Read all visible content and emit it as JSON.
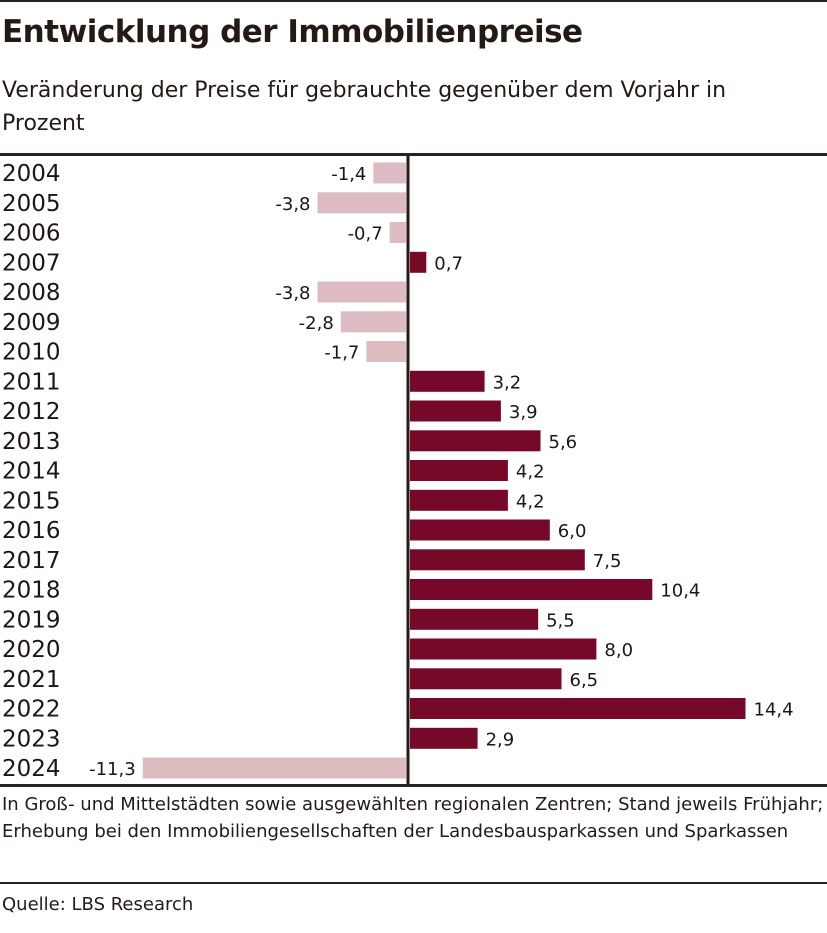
{
  "header": {
    "title": "Entwicklung der Immobilienpreise",
    "subtitle": "Veränderung der Preise für gebrauchte gegenüber dem Vorjahr in Prozent"
  },
  "footer": {
    "note": "In Groß- und Mittelstädten sowie ausgewählten regionalen Zentren; Stand jeweils Frühjahr; Erhebung bei den Immobiliengesellschaften der Landesbausparkassen und Sparkassen",
    "source": "Quelle: LBS Research"
  },
  "chart_data": {
    "type": "bar",
    "orientation": "horizontal",
    "title": "Entwicklung der Immobilienpreise",
    "subtitle": "Veränderung der Preise für gebrauchte gegenüber dem Vorjahr in Prozent",
    "categories": [
      "2004",
      "2005",
      "2006",
      "2007",
      "2008",
      "2009",
      "2010",
      "2011",
      "2012",
      "2013",
      "2014",
      "2015",
      "2016",
      "2017",
      "2018",
      "2019",
      "2020",
      "2021",
      "2022",
      "2023",
      "2024"
    ],
    "values": [
      -1.4,
      -3.8,
      -0.7,
      0.7,
      -3.8,
      -2.8,
      -1.7,
      3.2,
      3.9,
      5.6,
      4.2,
      4.2,
      6.0,
      7.5,
      10.4,
      5.5,
      8.0,
      6.5,
      14.4,
      2.9,
      -11.3
    ],
    "value_labels": [
      "-1,4",
      "-3,8",
      "-0,7",
      "0,7",
      "-3,8",
      "-2,8",
      "-1,7",
      "3,2",
      "3,9",
      "5,6",
      "4,2",
      "4,2",
      "6,0",
      "7,5",
      "10,4",
      "5,5",
      "8,0",
      "6,5",
      "14,4",
      "2,9",
      "-11,3"
    ],
    "colors": {
      "positive": "#76092a",
      "negative": "#dcbcc2",
      "axis": "#231a15"
    },
    "grid": false,
    "legend": "none",
    "xlim": [
      -11.3,
      14.4
    ]
  }
}
